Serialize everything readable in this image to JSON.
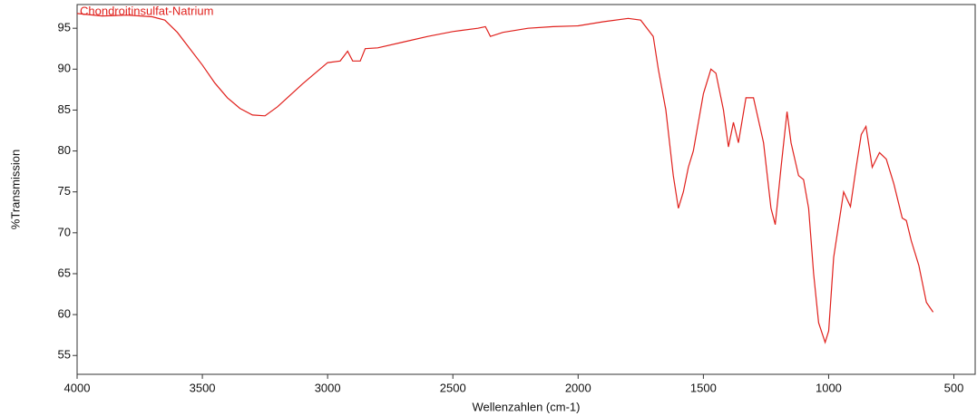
{
  "chart_data": {
    "type": "line",
    "title": "Chondroitinsulfat-Natrium",
    "xlabel": "Wellenzahlen (cm-1)",
    "ylabel": "%Transmission",
    "color": "#e0201c",
    "x": [
      4000,
      3900,
      3800,
      3700,
      3650,
      3600,
      3550,
      3500,
      3450,
      3400,
      3350,
      3300,
      3250,
      3200,
      3150,
      3100,
      3050,
      3000,
      2950,
      2920,
      2900,
      2870,
      2850,
      2800,
      2700,
      2600,
      2500,
      2400,
      2370,
      2350,
      2300,
      2200,
      2100,
      2000,
      1900,
      1800,
      1750,
      1700,
      1680,
      1650,
      1620,
      1600,
      1580,
      1560,
      1540,
      1500,
      1470,
      1450,
      1420,
      1400,
      1380,
      1360,
      1330,
      1300,
      1260,
      1230,
      1213,
      1190,
      1166,
      1150,
      1120,
      1100,
      1080,
      1060,
      1040,
      1014,
      1000,
      980,
      940,
      913,
      890,
      870,
      851,
      826,
      797,
      770,
      740,
      706,
      690,
      670,
      640,
      610,
      583
    ],
    "values": [
      96.8,
      96.5,
      96.6,
      96.4,
      96.0,
      94.5,
      92.5,
      90.5,
      88.3,
      86.5,
      85.2,
      84.4,
      84.3,
      85.4,
      86.8,
      88.2,
      89.5,
      90.8,
      91.0,
      92.2,
      91.0,
      91.0,
      92.5,
      92.6,
      93.3,
      94.0,
      94.6,
      95.0,
      95.2,
      94.0,
      94.5,
      95.0,
      95.2,
      95.3,
      95.8,
      96.2,
      96.0,
      94.0,
      90.0,
      85.0,
      77.0,
      73.0,
      75.0,
      78.0,
      80.0,
      87.0,
      90.0,
      89.5,
      85.0,
      80.5,
      83.5,
      81.0,
      86.5,
      86.5,
      81.0,
      73.0,
      71.0,
      78.0,
      84.8,
      81.0,
      77.0,
      76.5,
      73.0,
      65.0,
      59.0,
      56.6,
      58.0,
      67.0,
      75.0,
      73.2,
      78.0,
      82.0,
      83.0,
      78.0,
      79.8,
      79.0,
      76.0,
      71.8,
      71.5,
      69.0,
      66.0,
      61.5,
      60.3
    ],
    "xlim": [
      4000,
      415
    ],
    "xticks": [
      4000,
      3500,
      3000,
      2500,
      2000,
      1500,
      1000,
      500
    ],
    "ylim": [
      52.7,
      97.9
    ],
    "yticks": [
      55,
      60,
      65,
      70,
      75,
      80,
      85,
      90,
      95
    ],
    "grid": false
  }
}
